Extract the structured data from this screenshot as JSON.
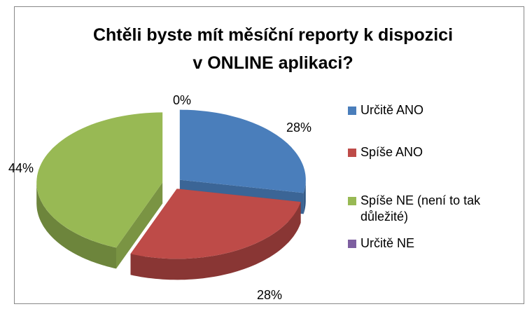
{
  "chart_data": {
    "type": "pie",
    "title": "Chtěli byste mít měsíční reporty k dispozici v ONLINE aplikaci?",
    "categories": [
      "Určitě ANO",
      "Spíše ANO",
      "Spíše NE (není to tak důležité)",
      "Určitě NE"
    ],
    "values": [
      28,
      28,
      44,
      0
    ],
    "value_labels": [
      "28%",
      "28%",
      "44%",
      "0%"
    ],
    "colors": [
      "#4a7ebb",
      "#be4b48",
      "#98b954",
      "#7d5fa0"
    ],
    "legend": "right"
  }
}
